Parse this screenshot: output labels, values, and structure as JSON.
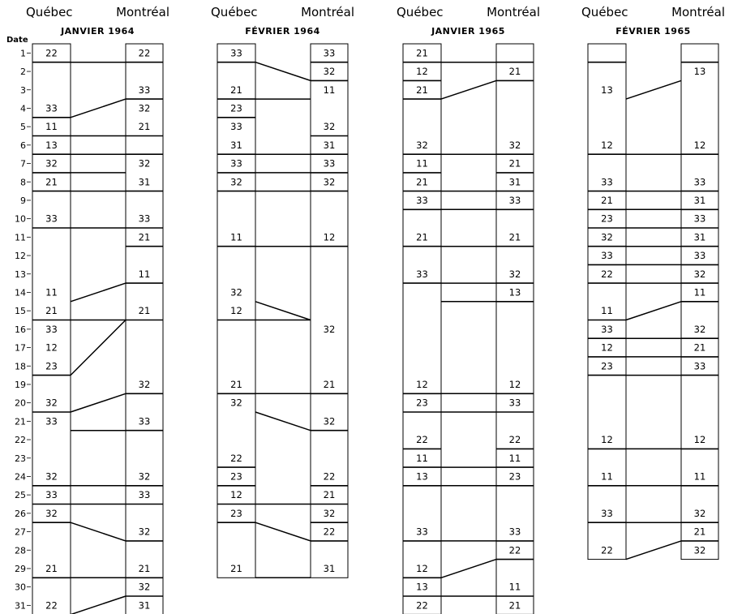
{
  "date_label": "Date",
  "days": [
    "1",
    "2",
    "3",
    "4",
    "5",
    "6",
    "7",
    "8",
    "9",
    "10",
    "11",
    "12",
    "13",
    "14",
    "15",
    "16",
    "17",
    "18",
    "19",
    "20",
    "21",
    "22",
    "23",
    "24",
    "25",
    "26",
    "27",
    "28",
    "29",
    "30",
    "31"
  ],
  "panels": [
    {
      "left_city": "Québec",
      "right_city": "Montréal",
      "title": "JANVIER 1964",
      "total_days": 31,
      "left_values": [
        {
          "d": 1,
          "v": "22"
        },
        {
          "d": 4,
          "v": "33"
        },
        {
          "d": 5,
          "v": "11"
        },
        {
          "d": 6,
          "v": "13"
        },
        {
          "d": 7,
          "v": "32"
        },
        {
          "d": 8,
          "v": "21"
        },
        {
          "d": 10,
          "v": "33"
        },
        {
          "d": 14,
          "v": "11"
        },
        {
          "d": 15,
          "v": "21"
        },
        {
          "d": 16,
          "v": "33"
        },
        {
          "d": 17,
          "v": "12"
        },
        {
          "d": 18,
          "v": "23"
        },
        {
          "d": 20,
          "v": "32"
        },
        {
          "d": 21,
          "v": "33"
        },
        {
          "d": 24,
          "v": "32"
        },
        {
          "d": 25,
          "v": "33"
        },
        {
          "d": 26,
          "v": "32"
        },
        {
          "d": 29,
          "v": "21"
        },
        {
          "d": 31,
          "v": "22"
        }
      ],
      "right_values": [
        {
          "d": 1,
          "v": "22"
        },
        {
          "d": 3,
          "v": "33"
        },
        {
          "d": 4,
          "v": "32"
        },
        {
          "d": 5,
          "v": "21"
        },
        {
          "d": 7,
          "v": "32"
        },
        {
          "d": 8,
          "v": "31"
        },
        {
          "d": 10,
          "v": "33"
        },
        {
          "d": 11,
          "v": "21"
        },
        {
          "d": 13,
          "v": "11"
        },
        {
          "d": 15,
          "v": "21"
        },
        {
          "d": 19,
          "v": "32"
        },
        {
          "d": 21,
          "v": "33"
        },
        {
          "d": 24,
          "v": "32"
        },
        {
          "d": 25,
          "v": "33"
        },
        {
          "d": 27,
          "v": "32"
        },
        {
          "d": 29,
          "v": "21"
        },
        {
          "d": 30,
          "v": "32"
        },
        {
          "d": 31,
          "v": "31"
        }
      ],
      "left_bounds": [
        1,
        4,
        5,
        6,
        7,
        8,
        10,
        15,
        18,
        20,
        24,
        25,
        26,
        29
      ],
      "right_bounds": [
        1,
        3,
        5,
        6,
        8,
        10,
        11,
        13,
        15,
        19,
        21,
        24,
        25,
        27,
        29,
        30
      ],
      "connectors": [
        [
          1,
          1
        ],
        [
          4,
          3
        ],
        [
          5,
          5
        ],
        [
          6,
          6
        ],
        [
          7,
          7
        ],
        [
          8,
          8
        ],
        [
          10,
          10
        ],
        [
          14,
          13
        ],
        [
          15,
          15
        ],
        [
          18,
          15
        ],
        [
          20,
          19
        ],
        [
          21,
          21
        ],
        [
          24,
          24
        ],
        [
          25,
          25
        ],
        [
          26,
          27
        ],
        [
          29,
          29
        ],
        [
          31,
          30
        ]
      ]
    },
    {
      "left_city": "Québec",
      "right_city": "Montréal",
      "title": "FÉVRIER 1964",
      "total_days": 29,
      "left_values": [
        {
          "d": 1,
          "v": "33"
        },
        {
          "d": 3,
          "v": "21"
        },
        {
          "d": 4,
          "v": "23"
        },
        {
          "d": 5,
          "v": "33"
        },
        {
          "d": 6,
          "v": "31"
        },
        {
          "d": 7,
          "v": "33"
        },
        {
          "d": 8,
          "v": "32"
        },
        {
          "d": 11,
          "v": "11"
        },
        {
          "d": 14,
          "v": "32"
        },
        {
          "d": 15,
          "v": "12"
        },
        {
          "d": 19,
          "v": "21"
        },
        {
          "d": 20,
          "v": "32"
        },
        {
          "d": 23,
          "v": "22"
        },
        {
          "d": 24,
          "v": "23"
        },
        {
          "d": 25,
          "v": "12"
        },
        {
          "d": 26,
          "v": "23"
        },
        {
          "d": 29,
          "v": "21"
        }
      ],
      "right_values": [
        {
          "d": 1,
          "v": "33"
        },
        {
          "d": 2,
          "v": "32"
        },
        {
          "d": 3,
          "v": "11"
        },
        {
          "d": 5,
          "v": "32"
        },
        {
          "d": 6,
          "v": "31"
        },
        {
          "d": 7,
          "v": "33"
        },
        {
          "d": 8,
          "v": "32"
        },
        {
          "d": 11,
          "v": "12"
        },
        {
          "d": 16,
          "v": "32"
        },
        {
          "d": 19,
          "v": "21"
        },
        {
          "d": 21,
          "v": "32"
        },
        {
          "d": 24,
          "v": "22"
        },
        {
          "d": 25,
          "v": "21"
        },
        {
          "d": 26,
          "v": "32"
        },
        {
          "d": 27,
          "v": "22"
        },
        {
          "d": 29,
          "v": "31"
        }
      ],
      "left_bounds": [
        1,
        3,
        4,
        6,
        7,
        8,
        11,
        15,
        19,
        23,
        24,
        25,
        26
      ],
      "right_bounds": [
        1,
        2,
        5,
        6,
        7,
        8,
        11,
        19,
        21,
        24,
        25,
        26,
        27
      ],
      "connectors": [
        [
          1,
          2
        ],
        [
          3,
          3
        ],
        [
          6,
          6
        ],
        [
          7,
          7
        ],
        [
          8,
          8
        ],
        [
          11,
          11
        ],
        [
          14,
          15
        ],
        [
          15,
          15
        ],
        [
          19,
          19
        ],
        [
          20,
          21
        ],
        [
          25,
          25
        ],
        [
          26,
          27
        ],
        [
          29,
          29
        ]
      ]
    },
    {
      "left_city": "Québec",
      "right_city": "Montréal",
      "title": "JANVIER 1965",
      "total_days": 31,
      "left_values": [
        {
          "d": 1,
          "v": "21"
        },
        {
          "d": 2,
          "v": "12"
        },
        {
          "d": 3,
          "v": "21"
        },
        {
          "d": 6,
          "v": "32"
        },
        {
          "d": 7,
          "v": "11"
        },
        {
          "d": 8,
          "v": "21"
        },
        {
          "d": 9,
          "v": "33"
        },
        {
          "d": 11,
          "v": "21"
        },
        {
          "d": 13,
          "v": "33"
        },
        {
          "d": 19,
          "v": "12"
        },
        {
          "d": 20,
          "v": "23"
        },
        {
          "d": 22,
          "v": "22"
        },
        {
          "d": 23,
          "v": "11"
        },
        {
          "d": 24,
          "v": "13"
        },
        {
          "d": 27,
          "v": "33"
        },
        {
          "d": 29,
          "v": "12"
        },
        {
          "d": 30,
          "v": "13"
        },
        {
          "d": 31,
          "v": "22"
        }
      ],
      "right_values": [
        {
          "d": 2,
          "v": "21"
        },
        {
          "d": 6,
          "v": "32"
        },
        {
          "d": 7,
          "v": "21"
        },
        {
          "d": 8,
          "v": "31"
        },
        {
          "d": 9,
          "v": "33"
        },
        {
          "d": 11,
          "v": "21"
        },
        {
          "d": 13,
          "v": "32"
        },
        {
          "d": 14,
          "v": "13"
        },
        {
          "d": 19,
          "v": "12"
        },
        {
          "d": 20,
          "v": "33"
        },
        {
          "d": 22,
          "v": "22"
        },
        {
          "d": 23,
          "v": "11"
        },
        {
          "d": 24,
          "v": "23"
        },
        {
          "d": 27,
          "v": "33"
        },
        {
          "d": 28,
          "v": "22"
        },
        {
          "d": 30,
          "v": "11"
        },
        {
          "d": 31,
          "v": "21"
        }
      ],
      "left_bounds": [
        1,
        2,
        3,
        6,
        7,
        8,
        9,
        11,
        13,
        19,
        20,
        22,
        23,
        24,
        27,
        29,
        30,
        31
      ],
      "right_bounds": [
        1,
        2,
        6,
        7,
        8,
        9,
        11,
        13,
        14,
        19,
        20,
        22,
        23,
        24,
        27,
        28,
        30,
        31
      ],
      "connectors": [
        [
          1,
          1
        ],
        [
          3,
          2
        ],
        [
          6,
          6
        ],
        [
          8,
          8
        ],
        [
          9,
          9
        ],
        [
          11,
          11
        ],
        [
          13,
          13
        ],
        [
          14,
          14
        ],
        [
          19,
          19
        ],
        [
          20,
          20
        ],
        [
          23,
          23
        ],
        [
          24,
          24
        ],
        [
          27,
          27
        ],
        [
          29,
          28
        ],
        [
          30,
          30
        ],
        [
          31,
          31
        ]
      ]
    },
    {
      "left_city": "Québec",
      "right_city": "Montréal",
      "title": "FÉVRIER 1965",
      "total_days": 28,
      "left_values": [
        {
          "d": 3,
          "v": "13"
        },
        {
          "d": 6,
          "v": "12"
        },
        {
          "d": 8,
          "v": "33"
        },
        {
          "d": 9,
          "v": "21"
        },
        {
          "d": 10,
          "v": "23"
        },
        {
          "d": 11,
          "v": "32"
        },
        {
          "d": 12,
          "v": "33"
        },
        {
          "d": 13,
          "v": "22"
        },
        {
          "d": 15,
          "v": "11"
        },
        {
          "d": 16,
          "v": "33"
        },
        {
          "d": 17,
          "v": "12"
        },
        {
          "d": 18,
          "v": "23"
        },
        {
          "d": 22,
          "v": "12"
        },
        {
          "d": 24,
          "v": "11"
        },
        {
          "d": 26,
          "v": "33"
        },
        {
          "d": 28,
          "v": "22"
        }
      ],
      "right_values": [
        {
          "d": 2,
          "v": "13"
        },
        {
          "d": 6,
          "v": "12"
        },
        {
          "d": 8,
          "v": "33"
        },
        {
          "d": 9,
          "v": "31"
        },
        {
          "d": 10,
          "v": "33"
        },
        {
          "d": 11,
          "v": "31"
        },
        {
          "d": 12,
          "v": "33"
        },
        {
          "d": 13,
          "v": "32"
        },
        {
          "d": 14,
          "v": "11"
        },
        {
          "d": 16,
          "v": "32"
        },
        {
          "d": 17,
          "v": "21"
        },
        {
          "d": 18,
          "v": "33"
        },
        {
          "d": 22,
          "v": "12"
        },
        {
          "d": 24,
          "v": "11"
        },
        {
          "d": 26,
          "v": "32"
        },
        {
          "d": 27,
          "v": "21"
        },
        {
          "d": 28,
          "v": "32"
        }
      ],
      "left_bounds": [
        1,
        6,
        8,
        9,
        10,
        11,
        12,
        13,
        15,
        16,
        17,
        18,
        22,
        24,
        26
      ],
      "right_bounds": [
        1,
        6,
        8,
        9,
        10,
        11,
        12,
        13,
        14,
        16,
        17,
        18,
        22,
        24,
        26,
        27
      ],
      "connectors": [
        [
          3,
          2
        ],
        [
          6,
          6
        ],
        [
          8,
          8
        ],
        [
          9,
          9
        ],
        [
          10,
          10
        ],
        [
          11,
          11
        ],
        [
          12,
          12
        ],
        [
          13,
          13
        ],
        [
          15,
          14
        ],
        [
          16,
          16
        ],
        [
          17,
          17
        ],
        [
          18,
          18
        ],
        [
          22,
          22
        ],
        [
          24,
          24
        ],
        [
          26,
          26
        ],
        [
          28,
          27
        ]
      ]
    }
  ]
}
